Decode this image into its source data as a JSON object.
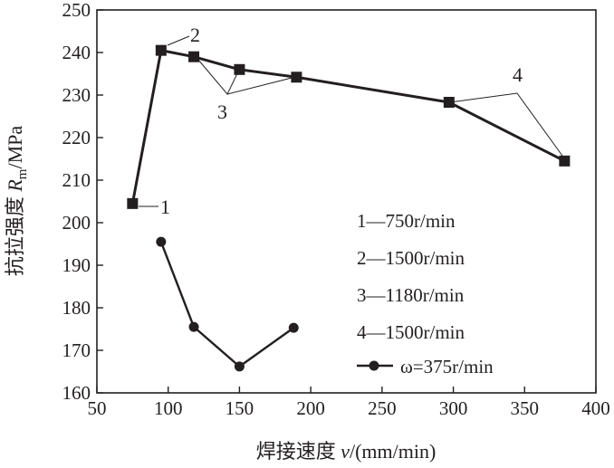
{
  "chart_data": {
    "type": "line",
    "xlabel": "焊接速度 v/(mm/min)",
    "xlabel_parts": {
      "prefix": "焊接速度 ",
      "var": "v",
      "suffix": "/(mm/min)"
    },
    "ylabel": "抗拉强度 Rm/MPa",
    "ylabel_parts": {
      "prefix": "抗拉强度 ",
      "var": "R",
      "sub": "m",
      "suffix": "/MPa"
    },
    "xlim": [
      50,
      400
    ],
    "ylim": [
      160,
      250
    ],
    "x_ticks": [
      "50",
      "100",
      "150",
      "200",
      "250",
      "300",
      "350",
      "400"
    ],
    "y_ticks": [
      "160",
      "170",
      "180",
      "190",
      "200",
      "210",
      "220",
      "230",
      "240",
      "250"
    ],
    "grid": false,
    "legend_position": "center-right",
    "legend": [
      "1—750r/min",
      "2—1500r/min",
      "3—1180r/min",
      "4—1500r/min",
      "ω=375r/min"
    ],
    "series": [
      {
        "name": "1—750r/min",
        "marker": "square",
        "points": [
          [
            75,
            204.5
          ]
        ]
      },
      {
        "name": "2—1500r/min",
        "marker": "square",
        "points": [
          [
            95,
            240.5
          ]
        ]
      },
      {
        "name": "3—1180r/min",
        "marker": "square",
        "points": [
          [
            118,
            239
          ],
          [
            150,
            236
          ],
          [
            190,
            234.2
          ]
        ]
      },
      {
        "name": "4—1500r/min",
        "marker": "square",
        "points": [
          [
            297,
            228.3
          ],
          [
            378,
            214.5
          ]
        ]
      },
      {
        "name": "ω=375r/min",
        "marker": "circle",
        "points": [
          [
            95,
            195.5
          ],
          [
            118,
            175.5
          ],
          [
            150,
            166.2
          ],
          [
            188,
            175.3
          ]
        ]
      }
    ],
    "connected_line": {
      "marker": "square",
      "points": [
        [
          75,
          204.5
        ],
        [
          95,
          240.5
        ],
        [
          118,
          239
        ],
        [
          150,
          236
        ],
        [
          190,
          234.2
        ],
        [
          297,
          228.3
        ],
        [
          378,
          214.5
        ]
      ]
    },
    "annotations": [
      "1",
      "2",
      "3",
      "4"
    ]
  }
}
